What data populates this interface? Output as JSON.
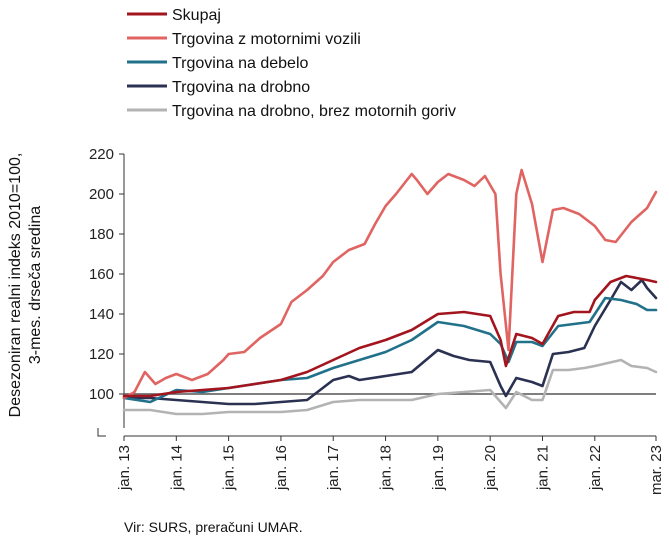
{
  "chart_data": {
    "type": "line",
    "title": "",
    "xlabel": "",
    "ylabel_lines": [
      "Desezoniran realni indeks 2010=100,",
      "3-mes. drseča sredina"
    ],
    "source": "Vir: SURS, preračuni UMAR.",
    "ylim": [
      90,
      220
    ],
    "yticks": [
      "100",
      "120",
      "140",
      "160",
      "180",
      "200",
      "220"
    ],
    "yticks_values": [
      100,
      120,
      140,
      160,
      180,
      200,
      220
    ],
    "xlim": [
      2013.0,
      2023.17
    ],
    "xticks": [
      "jan. 13",
      "jan. 14",
      "jan. 15",
      "jan. 16",
      "jan. 17",
      "jan. 18",
      "jan. 19",
      "jan. 20",
      "jan. 21",
      "jan. 22",
      "mar. 23"
    ],
    "xticks_values": [
      2013.0,
      2014.0,
      2015.0,
      2016.0,
      2017.0,
      2018.0,
      2019.0,
      2020.0,
      2021.0,
      2022.0,
      2023.17
    ],
    "reference_line": 100,
    "legend_position": "top-left",
    "series": [
      {
        "name": "Skupaj",
        "color": "#a3151e",
        "points": [
          [
            2013.0,
            99
          ],
          [
            2013.5,
            99
          ],
          [
            2014.0,
            101
          ],
          [
            2014.5,
            102
          ],
          [
            2015.0,
            103
          ],
          [
            2015.5,
            105
          ],
          [
            2016.0,
            107
          ],
          [
            2016.5,
            111
          ],
          [
            2017.0,
            117
          ],
          [
            2017.5,
            123
          ],
          [
            2018.0,
            127
          ],
          [
            2018.5,
            132
          ],
          [
            2019.0,
            140
          ],
          [
            2019.5,
            141
          ],
          [
            2020.0,
            139
          ],
          [
            2020.2,
            127
          ],
          [
            2020.3,
            114
          ],
          [
            2020.5,
            130
          ],
          [
            2020.8,
            128
          ],
          [
            2021.0,
            125
          ],
          [
            2021.3,
            139
          ],
          [
            2021.6,
            141
          ],
          [
            2021.9,
            141
          ],
          [
            2022.0,
            147
          ],
          [
            2022.3,
            156
          ],
          [
            2022.6,
            159
          ],
          [
            2022.8,
            158
          ],
          [
            2023.0,
            157
          ],
          [
            2023.17,
            156
          ]
        ]
      },
      {
        "name": "Trgovina z motornimi vozili",
        "color": "#e06461",
        "points": [
          [
            2013.0,
            98
          ],
          [
            2013.2,
            101
          ],
          [
            2013.4,
            111
          ],
          [
            2013.6,
            105
          ],
          [
            2013.8,
            108
          ],
          [
            2014.0,
            110
          ],
          [
            2014.3,
            107
          ],
          [
            2014.6,
            110
          ],
          [
            2014.9,
            117
          ],
          [
            2015.0,
            120
          ],
          [
            2015.3,
            121
          ],
          [
            2015.6,
            128
          ],
          [
            2016.0,
            135
          ],
          [
            2016.2,
            146
          ],
          [
            2016.5,
            152
          ],
          [
            2016.8,
            159
          ],
          [
            2017.0,
            166
          ],
          [
            2017.3,
            172
          ],
          [
            2017.6,
            175
          ],
          [
            2017.8,
            185
          ],
          [
            2018.0,
            194
          ],
          [
            2018.2,
            200
          ],
          [
            2018.5,
            210
          ],
          [
            2018.6,
            207
          ],
          [
            2018.8,
            200
          ],
          [
            2019.0,
            206
          ],
          [
            2019.2,
            210
          ],
          [
            2019.5,
            207
          ],
          [
            2019.7,
            204
          ],
          [
            2019.9,
            209
          ],
          [
            2020.1,
            200
          ],
          [
            2020.2,
            160
          ],
          [
            2020.35,
            122
          ],
          [
            2020.5,
            200
          ],
          [
            2020.6,
            212
          ],
          [
            2020.8,
            195
          ],
          [
            2021.0,
            166
          ],
          [
            2021.2,
            192
          ],
          [
            2021.4,
            193
          ],
          [
            2021.7,
            190
          ],
          [
            2022.0,
            184
          ],
          [
            2022.2,
            177
          ],
          [
            2022.4,
            176
          ],
          [
            2022.7,
            186
          ],
          [
            2023.0,
            193
          ],
          [
            2023.17,
            201
          ]
        ]
      },
      {
        "name": "Trgovina na debelo",
        "color": "#21718a",
        "points": [
          [
            2013.0,
            98
          ],
          [
            2013.5,
            96
          ],
          [
            2014.0,
            102
          ],
          [
            2014.5,
            101
          ],
          [
            2015.0,
            103
          ],
          [
            2015.5,
            105
          ],
          [
            2016.0,
            107
          ],
          [
            2016.5,
            108
          ],
          [
            2017.0,
            113
          ],
          [
            2017.5,
            117
          ],
          [
            2018.0,
            121
          ],
          [
            2018.5,
            127
          ],
          [
            2019.0,
            136
          ],
          [
            2019.5,
            134
          ],
          [
            2020.0,
            130
          ],
          [
            2020.2,
            125
          ],
          [
            2020.35,
            116
          ],
          [
            2020.5,
            126
          ],
          [
            2020.8,
            126
          ],
          [
            2021.0,
            124
          ],
          [
            2021.3,
            134
          ],
          [
            2021.6,
            135
          ],
          [
            2021.9,
            136
          ],
          [
            2022.2,
            148
          ],
          [
            2022.5,
            147
          ],
          [
            2022.8,
            145
          ],
          [
            2023.0,
            142
          ],
          [
            2023.17,
            142
          ]
        ]
      },
      {
        "name": "Trgovina na drobno",
        "color": "#2b3151",
        "points": [
          [
            2013.0,
            98
          ],
          [
            2013.5,
            98
          ],
          [
            2014.0,
            97
          ],
          [
            2014.5,
            96
          ],
          [
            2015.0,
            95
          ],
          [
            2015.5,
            95
          ],
          [
            2016.0,
            96
          ],
          [
            2016.5,
            97
          ],
          [
            2017.0,
            107
          ],
          [
            2017.3,
            109
          ],
          [
            2017.5,
            107
          ],
          [
            2018.0,
            109
          ],
          [
            2018.5,
            111
          ],
          [
            2019.0,
            122
          ],
          [
            2019.3,
            119
          ],
          [
            2019.6,
            117
          ],
          [
            2020.0,
            116
          ],
          [
            2020.2,
            104
          ],
          [
            2020.3,
            99
          ],
          [
            2020.5,
            108
          ],
          [
            2020.8,
            106
          ],
          [
            2021.0,
            104
          ],
          [
            2021.2,
            120
          ],
          [
            2021.5,
            121
          ],
          [
            2021.8,
            123
          ],
          [
            2022.0,
            134
          ],
          [
            2022.3,
            147
          ],
          [
            2022.5,
            156
          ],
          [
            2022.7,
            152
          ],
          [
            2022.9,
            157
          ],
          [
            2023.0,
            153
          ],
          [
            2023.17,
            148
          ]
        ]
      },
      {
        "name": "Trgovina na drobno, brez motornih goriv",
        "color": "#b3b3b3",
        "points": [
          [
            2013.0,
            92
          ],
          [
            2013.5,
            92
          ],
          [
            2014.0,
            90
          ],
          [
            2014.5,
            90
          ],
          [
            2015.0,
            91
          ],
          [
            2015.5,
            91
          ],
          [
            2016.0,
            91
          ],
          [
            2016.5,
            92
          ],
          [
            2017.0,
            96
          ],
          [
            2017.5,
            97
          ],
          [
            2018.0,
            97
          ],
          [
            2018.5,
            97
          ],
          [
            2019.0,
            100
          ],
          [
            2019.5,
            101
          ],
          [
            2020.0,
            102
          ],
          [
            2020.2,
            96
          ],
          [
            2020.3,
            93
          ],
          [
            2020.5,
            101
          ],
          [
            2020.8,
            97
          ],
          [
            2021.0,
            97
          ],
          [
            2021.2,
            112
          ],
          [
            2021.5,
            112
          ],
          [
            2021.8,
            113
          ],
          [
            2022.0,
            114
          ],
          [
            2022.5,
            117
          ],
          [
            2022.7,
            114
          ],
          [
            2023.0,
            113
          ],
          [
            2023.17,
            111
          ]
        ]
      }
    ]
  }
}
